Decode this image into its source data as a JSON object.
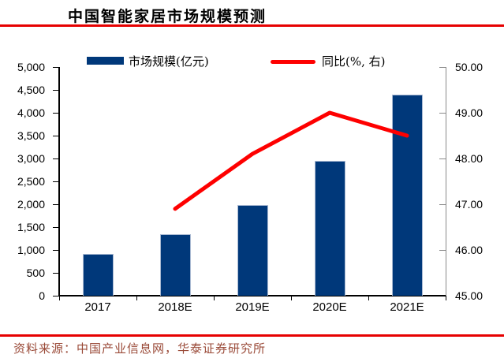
{
  "page": {
    "title": "中国智能家居市场规模预测",
    "source": "资料来源：中国产业信息网，华泰证券研究所"
  },
  "colors": {
    "bar": "#00387a",
    "bar_border": "#a9b9d2",
    "line": "#fe0000",
    "rule": "#e60000",
    "source_text": "#9a4a38",
    "axis": "#000000",
    "right_axis_line": "#8a8a8a"
  },
  "legend": {
    "items": [
      {
        "label": "市场规模(亿元)",
        "marker": "bar-swatch",
        "color": "#00387a"
      },
      {
        "label": "同比(%, 右)",
        "marker": "line-swatch",
        "color": "#fe0000"
      }
    ]
  },
  "chart_data": {
    "type": "bar",
    "title": "中国智能家居市场规模预测",
    "categories": [
      "2017",
      "2018E",
      "2019E",
      "2020E",
      "2021E"
    ],
    "series": [
      {
        "name": "市场规模(亿元)",
        "type": "bar",
        "axis": "left",
        "color": "#00387a",
        "values": [
          910,
          1340,
          1990,
          2950,
          4400
        ]
      },
      {
        "name": "同比(%, 右)",
        "type": "line",
        "axis": "right",
        "color": "#fe0000",
        "values": [
          null,
          46.9,
          48.1,
          49.0,
          48.5
        ]
      }
    ],
    "left_axis": {
      "min": 0,
      "max": 5000,
      "step": 500,
      "tick_labels": [
        "0",
        "500",
        "1,000",
        "1,500",
        "2,000",
        "2,500",
        "3,000",
        "3,500",
        "4,000",
        "4,500",
        "5,000"
      ]
    },
    "right_axis": {
      "min": 45,
      "max": 50,
      "step": 1,
      "tick_labels": [
        "45.00",
        "46.00",
        "47.00",
        "48.00",
        "49.00",
        "50.00"
      ]
    },
    "legend_position": "top",
    "grid": false
  }
}
